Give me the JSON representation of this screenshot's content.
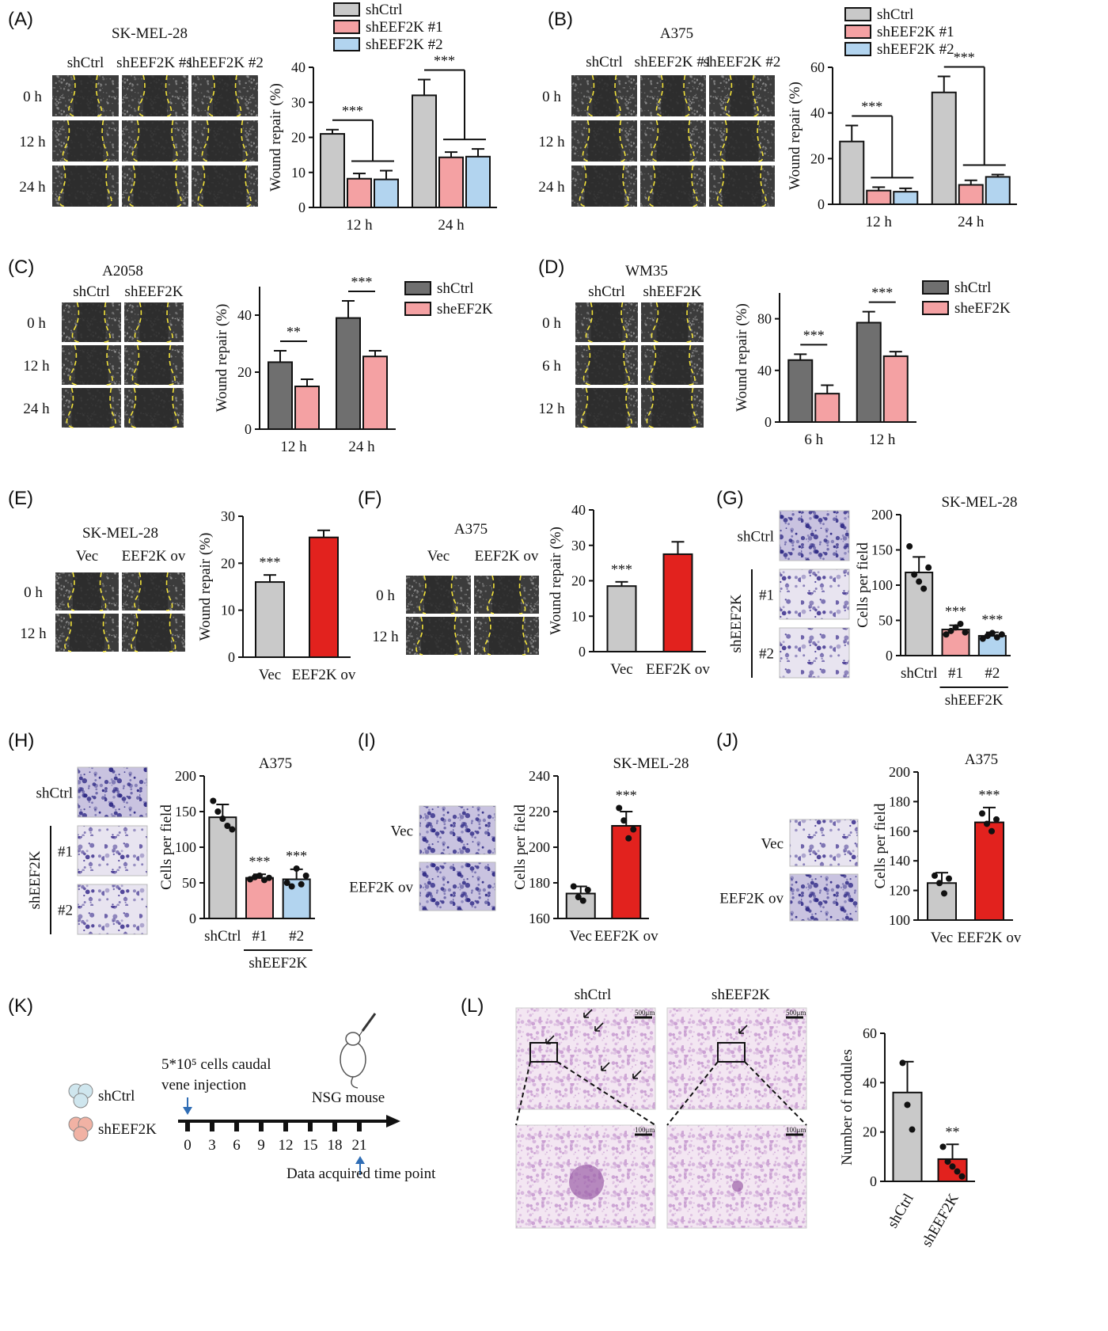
{
  "colors": {
    "grey": "#c9c9c9",
    "dark": "#6f6f6f",
    "pink": "#f4a1a3",
    "blue": "#b2d4ef",
    "red": "#e2221e",
    "ink": "#111111",
    "dash": "#f2e23a"
  },
  "panel_labels": [
    "(A)",
    "(B)",
    "(C)",
    "(D)",
    "(E)",
    "(F)",
    "(G)",
    "(H)",
    "(I)",
    "(J)",
    "(K)",
    "(L)"
  ],
  "micrographs": {
    "A": {
      "title": "SK-MEL-28",
      "cols": [
        "shCtrl",
        "shEEF2K #1",
        "shEEF2K #2"
      ],
      "rows": [
        "0 h",
        "12 h",
        "24 h"
      ]
    },
    "B": {
      "title": "A375",
      "cols": [
        "shCtrl",
        "shEEF2K #1",
        "shEEF2K #2"
      ],
      "rows": [
        "0 h",
        "12 h",
        "24 h"
      ]
    },
    "C": {
      "title": "A2058",
      "cols": [
        "shCtrl",
        "shEEF2K"
      ],
      "rows": [
        "0 h",
        "12 h",
        "24 h"
      ]
    },
    "D": {
      "title": "WM35",
      "cols": [
        "shCtrl",
        "shEEF2K"
      ],
      "rows": [
        "0 h",
        "6 h",
        "12 h"
      ]
    },
    "E": {
      "title": "SK-MEL-28",
      "cols": [
        "Vec",
        "EEF2K ov"
      ],
      "rows": [
        "0 h",
        "12 h"
      ]
    },
    "F": {
      "title": "A375",
      "cols": [
        "Vec",
        "EEF2K ov"
      ],
      "rows": [
        "0 h",
        "12 h"
      ]
    },
    "G": {
      "rows": [
        "shCtrl",
        "#1",
        "#2"
      ],
      "group": "shEEF2K"
    },
    "H": {
      "rows": [
        "shCtrl",
        "#1",
        "#2"
      ],
      "group": "shEEF2K"
    },
    "I": {
      "rows": [
        "Vec",
        "EEF2K ov"
      ]
    },
    "J": {
      "rows": [
        "Vec",
        "EEF2K ov"
      ]
    },
    "L": {
      "cols": [
        "shCtrl",
        "shEEF2K"
      ],
      "scale_top": "500μm",
      "scale_bottom": "100μm"
    }
  },
  "schematic": {
    "legend": [
      "shCtrl",
      "shEEF2K"
    ],
    "injection": [
      "5*10⁵ cells caudal",
      "vene injection"
    ],
    "mouse": "NSG mouse",
    "timeline": [
      "0",
      "3",
      "6",
      "9",
      "12",
      "15",
      "18",
      "21"
    ],
    "acquired": "Data acquired time point"
  },
  "chart_data": [
    {
      "id": "A",
      "type": "bar",
      "ylabel": "Wound repair (%)",
      "ylim": [
        0,
        40
      ],
      "yticks": [
        0,
        10,
        20,
        30,
        40
      ],
      "categories": [
        "12 h",
        "24 h"
      ],
      "legend": "top",
      "series": [
        {
          "name": "shCtrl",
          "values": [
            21,
            32
          ],
          "err": [
            1.2,
            4.5
          ]
        },
        {
          "name": "shEEF2K #1",
          "values": [
            8.2,
            14.3
          ],
          "err": [
            1.5,
            1.5
          ]
        },
        {
          "name": "shEEF2K #2",
          "values": [
            8,
            14.5
          ],
          "err": [
            2.5,
            2.2
          ]
        }
      ],
      "annotations": [
        "***",
        "***"
      ]
    },
    {
      "id": "B",
      "type": "bar",
      "ylabel": "Wound repair (%)",
      "ylim": [
        0,
        60
      ],
      "yticks": [
        0,
        20,
        40,
        60
      ],
      "categories": [
        "12 h",
        "24 h"
      ],
      "legend": "top",
      "series": [
        {
          "name": "shCtrl",
          "values": [
            27.5,
            49
          ],
          "err": [
            7,
            7
          ]
        },
        {
          "name": "shEEF2K #1",
          "values": [
            6,
            8.5
          ],
          "err": [
            1.5,
            2
          ]
        },
        {
          "name": "shEEF2K #2",
          "values": [
            5.5,
            12
          ],
          "err": [
            1.5,
            1
          ]
        }
      ],
      "annotations": [
        "***",
        "***"
      ]
    },
    {
      "id": "C",
      "type": "bar",
      "ylabel": "Wound repair (%)",
      "ylim": [
        0,
        50
      ],
      "yticks": [
        0,
        20,
        40
      ],
      "categories": [
        "12 h",
        "24 h"
      ],
      "legend": "right",
      "series": [
        {
          "name": "shCtrl",
          "values": [
            23.5,
            39
          ],
          "err": [
            4,
            6
          ]
        },
        {
          "name": "sheEF2K",
          "values": [
            15,
            25.5
          ],
          "err": [
            2.5,
            2
          ]
        }
      ],
      "annotations": [
        "**",
        "***"
      ]
    },
    {
      "id": "D",
      "type": "bar",
      "ylabel": "Wound repair (%)",
      "ylim": [
        0,
        100
      ],
      "yticks": [
        0,
        40,
        80
      ],
      "categories": [
        "6 h",
        "12 h"
      ],
      "legend": "right",
      "series": [
        {
          "name": "shCtrl",
          "values": [
            48,
            77
          ],
          "err": [
            4.5,
            8.5
          ]
        },
        {
          "name": "sheEF2K",
          "values": [
            22,
            51
          ],
          "err": [
            6.5,
            3.5
          ]
        }
      ],
      "annotations": [
        "***",
        "***"
      ]
    },
    {
      "id": "E",
      "type": "bar",
      "ylabel": "Wound repair (%)",
      "ylim": [
        0,
        30
      ],
      "yticks": [
        0,
        10,
        20,
        30
      ],
      "categories": [
        "Vec",
        "EEF2K ov"
      ],
      "values": [
        16,
        25.5
      ],
      "err": [
        1.5,
        1.5
      ],
      "annotations": [
        "***"
      ]
    },
    {
      "id": "F",
      "type": "bar",
      "ylabel": "Wound repair (%)",
      "ylim": [
        0,
        40
      ],
      "yticks": [
        0,
        10,
        20,
        30,
        40
      ],
      "categories": [
        "Vec",
        "EEF2K ov"
      ],
      "values": [
        18.5,
        27.5
      ],
      "err": [
        1.2,
        3.5
      ],
      "annotations": [
        "***"
      ]
    },
    {
      "id": "G",
      "type": "bar",
      "title": "SK-MEL-28",
      "ylabel": "Cells per field",
      "ylim": [
        0,
        200
      ],
      "yticks": [
        0,
        50,
        100,
        150,
        200
      ],
      "categories": [
        "shCtrl",
        "#1",
        "#2"
      ],
      "group_label": "shEEF2K",
      "values": [
        118,
        37,
        28
      ],
      "err": [
        22,
        6,
        5
      ],
      "points": [
        [
          155,
          115,
          105,
          95,
          125
        ],
        [
          30,
          35,
          40,
          45,
          33
        ],
        [
          24,
          28,
          32,
          26,
          30
        ]
      ],
      "annotations": [
        "",
        "***",
        "***"
      ]
    },
    {
      "id": "H",
      "type": "bar",
      "title": "A375",
      "ylabel": "Cells per field",
      "ylim": [
        0,
        200
      ],
      "yticks": [
        0,
        50,
        100,
        150,
        200
      ],
      "categories": [
        "shCtrl",
        "#1",
        "#2"
      ],
      "group_label": "shEEF2K",
      "values": [
        142,
        57,
        55
      ],
      "err": [
        18,
        5,
        14
      ],
      "points": [
        [
          165,
          150,
          140,
          130,
          125
        ],
        [
          55,
          58,
          60,
          54,
          57
        ],
        [
          50,
          45,
          70,
          48,
          60
        ]
      ],
      "annotations": [
        "",
        "***",
        "***"
      ]
    },
    {
      "id": "I",
      "type": "bar",
      "title": "SK-MEL-28",
      "ylabel": "Cells per field",
      "ylim": [
        160,
        240
      ],
      "yticks": [
        160,
        180,
        200,
        220,
        240
      ],
      "categories": [
        "Vec",
        "EEF2K ov"
      ],
      "values": [
        174,
        212
      ],
      "err": [
        4,
        8
      ],
      "points": [
        [
          178,
          172,
          170,
          176
        ],
        [
          222,
          215,
          205,
          210
        ]
      ],
      "annotations": [
        "",
        "***"
      ]
    },
    {
      "id": "J",
      "type": "bar",
      "title": "A375",
      "ylabel": "Cells per field",
      "ylim": [
        100,
        200
      ],
      "yticks": [
        100,
        120,
        140,
        160,
        180,
        200
      ],
      "categories": [
        "Vec",
        "EEF2K ov"
      ],
      "values": [
        125,
        166
      ],
      "err": [
        7,
        10
      ],
      "points": [
        [
          130,
          125,
          118,
          128
        ],
        [
          172,
          165,
          160,
          168
        ]
      ],
      "annotations": [
        "",
        "***"
      ]
    },
    {
      "id": "L",
      "type": "bar",
      "ylabel": "Number of nodules",
      "ylim": [
        0,
        60
      ],
      "yticks": [
        0,
        20,
        40,
        60
      ],
      "categories": [
        "shCtrl",
        "shEEF2K"
      ],
      "values": [
        36,
        9
      ],
      "err": [
        12.5,
        6
      ],
      "points": [
        [
          48,
          31,
          21
        ],
        [
          14,
          8,
          6,
          4,
          2
        ]
      ],
      "annotations": [
        "",
        "**"
      ]
    }
  ]
}
